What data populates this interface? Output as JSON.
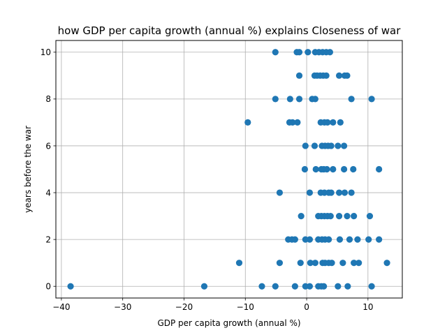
{
  "chart_data": {
    "type": "scatter",
    "title": "how GDP per capita growth (annual %) explains Closeness of war",
    "xlabel": "GDP per capita growth (annual %)",
    "ylabel": "years before the war",
    "xlim": [
      -40.9,
      15.6
    ],
    "ylim": [
      -0.5,
      10.5
    ],
    "xticks": [
      -40,
      -30,
      -20,
      -10,
      0,
      10
    ],
    "yticks": [
      0,
      2,
      4,
      6,
      8,
      10
    ],
    "grid": true,
    "marker_color": "#1f77b4",
    "points": [
      {
        "x": -38.5,
        "y": 0
      },
      {
        "x": -16.7,
        "y": 0
      },
      {
        "x": -7.3,
        "y": 0
      },
      {
        "x": -5.1,
        "y": 0
      },
      {
        "x": -1.9,
        "y": 0
      },
      {
        "x": -0.2,
        "y": 0
      },
      {
        "x": 0.5,
        "y": 0
      },
      {
        "x": 1.9,
        "y": 0
      },
      {
        "x": 2.4,
        "y": 0
      },
      {
        "x": 2.8,
        "y": 0
      },
      {
        "x": 5.1,
        "y": 0
      },
      {
        "x": 6.7,
        "y": 0
      },
      {
        "x": 10.6,
        "y": 0
      },
      {
        "x": -11.0,
        "y": 1
      },
      {
        "x": -4.4,
        "y": 1
      },
      {
        "x": -1.0,
        "y": 1
      },
      {
        "x": 0.6,
        "y": 1
      },
      {
        "x": 1.4,
        "y": 1
      },
      {
        "x": 2.6,
        "y": 1
      },
      {
        "x": 3.0,
        "y": 1
      },
      {
        "x": 3.6,
        "y": 1
      },
      {
        "x": 4.1,
        "y": 1
      },
      {
        "x": 5.9,
        "y": 1
      },
      {
        "x": 7.7,
        "y": 1
      },
      {
        "x": 8.5,
        "y": 1
      },
      {
        "x": 13.1,
        "y": 1
      },
      {
        "x": -3.0,
        "y": 2
      },
      {
        "x": -2.4,
        "y": 2
      },
      {
        "x": -1.9,
        "y": 2
      },
      {
        "x": -0.2,
        "y": 2
      },
      {
        "x": 0.5,
        "y": 2
      },
      {
        "x": 1.9,
        "y": 2
      },
      {
        "x": 2.5,
        "y": 2
      },
      {
        "x": 3.0,
        "y": 2
      },
      {
        "x": 3.6,
        "y": 2
      },
      {
        "x": 5.4,
        "y": 2
      },
      {
        "x": 7.0,
        "y": 2
      },
      {
        "x": 8.3,
        "y": 2
      },
      {
        "x": 10.1,
        "y": 2
      },
      {
        "x": 11.8,
        "y": 2
      },
      {
        "x": -0.9,
        "y": 3
      },
      {
        "x": 1.9,
        "y": 3
      },
      {
        "x": 2.4,
        "y": 3
      },
      {
        "x": 2.9,
        "y": 3
      },
      {
        "x": 3.4,
        "y": 3
      },
      {
        "x": 3.9,
        "y": 3
      },
      {
        "x": 5.3,
        "y": 3
      },
      {
        "x": 6.6,
        "y": 3
      },
      {
        "x": 7.7,
        "y": 3
      },
      {
        "x": 10.3,
        "y": 3
      },
      {
        "x": -4.4,
        "y": 4
      },
      {
        "x": 0.5,
        "y": 4
      },
      {
        "x": 2.3,
        "y": 4
      },
      {
        "x": 2.9,
        "y": 4
      },
      {
        "x": 3.6,
        "y": 4
      },
      {
        "x": 4.0,
        "y": 4
      },
      {
        "x": 5.3,
        "y": 4
      },
      {
        "x": 6.2,
        "y": 4
      },
      {
        "x": 7.3,
        "y": 4
      },
      {
        "x": -0.3,
        "y": 5
      },
      {
        "x": 1.5,
        "y": 5
      },
      {
        "x": 2.4,
        "y": 5
      },
      {
        "x": 2.8,
        "y": 5
      },
      {
        "x": 3.3,
        "y": 5
      },
      {
        "x": 4.3,
        "y": 5
      },
      {
        "x": 6.1,
        "y": 5
      },
      {
        "x": 7.6,
        "y": 5
      },
      {
        "x": 11.8,
        "y": 5
      },
      {
        "x": -0.2,
        "y": 6
      },
      {
        "x": 1.3,
        "y": 6
      },
      {
        "x": 2.5,
        "y": 6
      },
      {
        "x": 3.0,
        "y": 6
      },
      {
        "x": 3.5,
        "y": 6
      },
      {
        "x": 4.0,
        "y": 6
      },
      {
        "x": 5.1,
        "y": 6
      },
      {
        "x": 6.1,
        "y": 6
      },
      {
        "x": -9.6,
        "y": 7
      },
      {
        "x": -2.8,
        "y": 7
      },
      {
        "x": -2.3,
        "y": 7
      },
      {
        "x": -1.5,
        "y": 7
      },
      {
        "x": 2.3,
        "y": 7
      },
      {
        "x": 2.9,
        "y": 7
      },
      {
        "x": 3.4,
        "y": 7
      },
      {
        "x": 4.3,
        "y": 7
      },
      {
        "x": 5.5,
        "y": 7
      },
      {
        "x": -5.1,
        "y": 8
      },
      {
        "x": -2.7,
        "y": 8
      },
      {
        "x": -1.2,
        "y": 8
      },
      {
        "x": 0.9,
        "y": 8
      },
      {
        "x": 1.4,
        "y": 8
      },
      {
        "x": 7.3,
        "y": 8
      },
      {
        "x": 10.6,
        "y": 8
      },
      {
        "x": -1.2,
        "y": 9
      },
      {
        "x": 1.3,
        "y": 9
      },
      {
        "x": 1.7,
        "y": 9
      },
      {
        "x": 2.2,
        "y": 9
      },
      {
        "x": 2.7,
        "y": 9
      },
      {
        "x": 3.2,
        "y": 9
      },
      {
        "x": 5.3,
        "y": 9
      },
      {
        "x": 6.2,
        "y": 9
      },
      {
        "x": 6.6,
        "y": 9
      },
      {
        "x": -5.1,
        "y": 10
      },
      {
        "x": -1.6,
        "y": 10
      },
      {
        "x": -1.2,
        "y": 10
      },
      {
        "x": 0.2,
        "y": 10
      },
      {
        "x": 1.4,
        "y": 10
      },
      {
        "x": 2.0,
        "y": 10
      },
      {
        "x": 2.6,
        "y": 10
      },
      {
        "x": 3.2,
        "y": 10
      },
      {
        "x": 3.8,
        "y": 10
      }
    ]
  }
}
